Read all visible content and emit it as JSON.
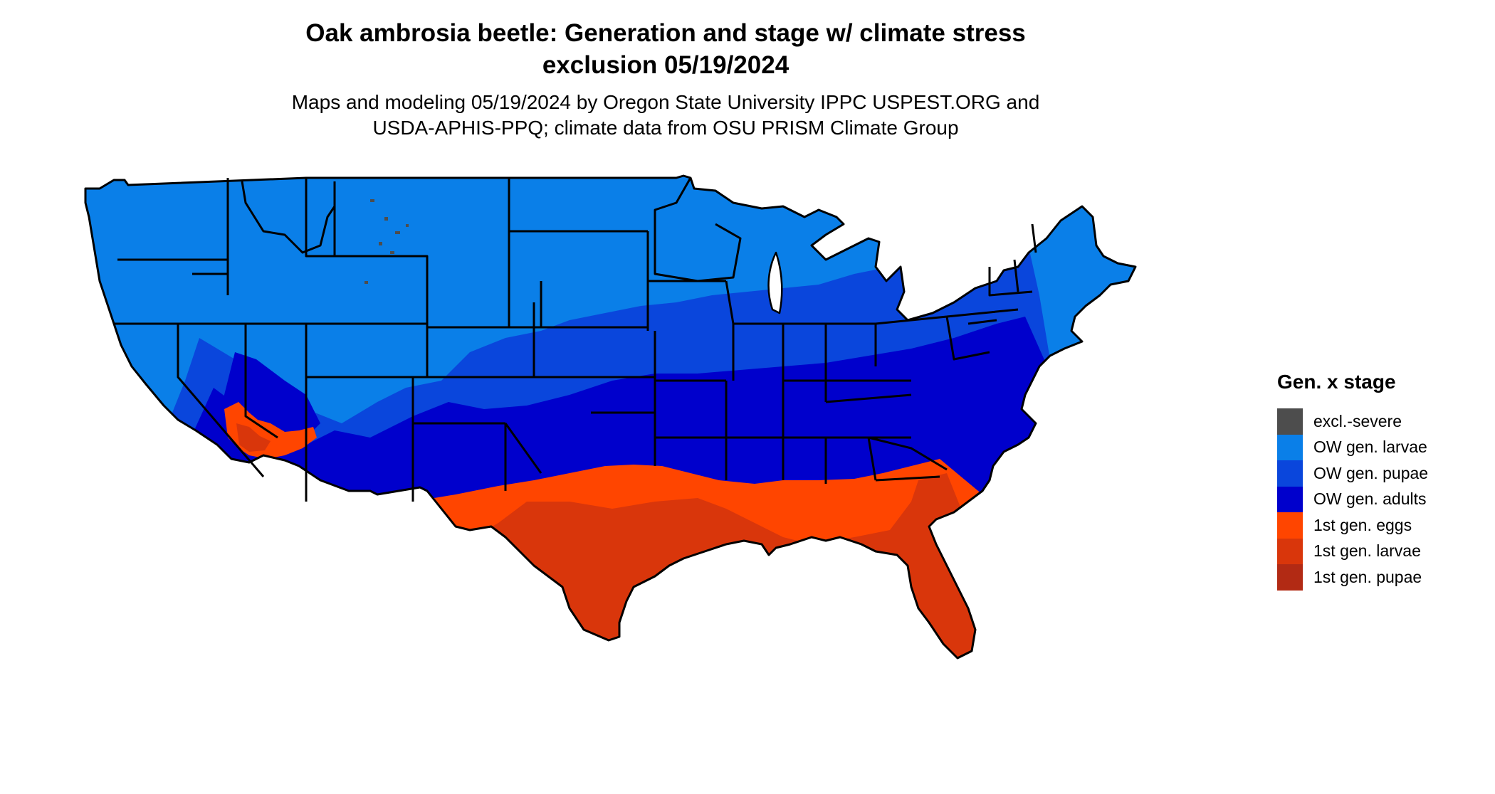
{
  "title_line1": "Oak ambrosia beetle: Generation and stage w/ climate stress",
  "title_line2": "exclusion 05/19/2024",
  "subtitle_line1": "Maps and modeling 05/19/2024 by Oregon State University IPPC USPEST.ORG and",
  "subtitle_line2": "USDA-APHIS-PPQ; climate data from OSU PRISM Climate Group",
  "legend": {
    "title": "Gen. x stage",
    "items": [
      {
        "label": "excl.-severe",
        "color": "#4d4d4d"
      },
      {
        "label": "OW gen. larvae",
        "color": "#0a7fe8"
      },
      {
        "label": "OW gen. pupae",
        "color": "#0a46dc"
      },
      {
        "label": "OW gen. adults",
        "color": "#0000cc"
      },
      {
        "label": "1st gen. eggs",
        "color": "#ff4500"
      },
      {
        "label": "1st gen. larvae",
        "color": "#d9360b"
      },
      {
        "label": "1st gen. pupae",
        "color": "#b22a14"
      }
    ]
  }
}
